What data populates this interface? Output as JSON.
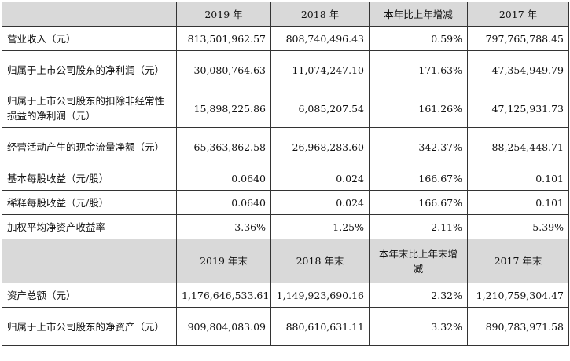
{
  "header_1": {
    "blank": "",
    "cols": [
      "2019 年",
      "2018 年",
      "本年比上年增减",
      "2017 年"
    ]
  },
  "rows_1": [
    {
      "label": "营业收入（元）",
      "values": [
        "813,501,962.57",
        "808,740,496.43",
        "0.59%",
        "797,765,788.45"
      ]
    },
    {
      "label": "归属于上市公司股东的净利润（元）",
      "values": [
        "30,080,764.63",
        "11,074,247.10",
        "171.63%",
        "47,354,949.79"
      ]
    },
    {
      "label": "归属于上市公司股东的扣除非经常性损益的净利润（元）",
      "values": [
        "15,898,225.86",
        "6,085,207.54",
        "161.26%",
        "47,125,931.73"
      ]
    },
    {
      "label": "经营活动产生的现金流量净额（元）",
      "values": [
        "65,363,862.58",
        "-26,968,283.60",
        "342.37%",
        "88,254,448.71"
      ]
    },
    {
      "label": "基本每股收益（元/股）",
      "values": [
        "0.0640",
        "0.024",
        "166.67%",
        "0.101"
      ]
    },
    {
      "label": "稀释每股收益（元/股）",
      "values": [
        "0.0640",
        "0.024",
        "166.67%",
        "0.101"
      ]
    },
    {
      "label": "加权平均净资产收益率",
      "values": [
        "3.36%",
        "1.25%",
        "2.11%",
        "5.39%"
      ]
    }
  ],
  "header_2": {
    "blank": "",
    "cols": [
      "2019 年末",
      "2018 年末",
      "本年末比上年末增减",
      "2017 年末"
    ]
  },
  "rows_2": [
    {
      "label": "资产总额（元）",
      "values": [
        "1,176,646,533.61",
        "1,149,923,690.16",
        "2.32%",
        "1,210,759,304.47"
      ]
    },
    {
      "label": "归属于上市公司股东的净资产（元）",
      "values": [
        "909,804,083.09",
        "880,610,631.11",
        "3.32%",
        "890,783,971.58"
      ]
    }
  ]
}
